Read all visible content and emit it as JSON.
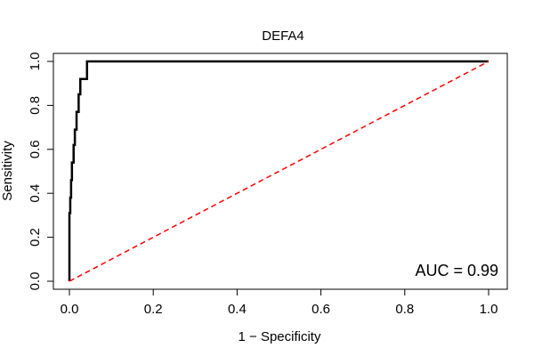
{
  "chart_data": {
    "type": "line",
    "title": "DEFA4",
    "xlabel": "1 − Specificity",
    "ylabel": "Sensitivity",
    "xlim": [
      0,
      1
    ],
    "ylim": [
      0,
      1
    ],
    "xticks": [
      0.0,
      0.2,
      0.4,
      0.6,
      0.8,
      1.0
    ],
    "yticks": [
      0.0,
      0.2,
      0.4,
      0.6,
      0.8,
      1.0
    ],
    "xtick_labels": [
      "0.0",
      "0.2",
      "0.4",
      "0.6",
      "0.8",
      "1.0"
    ],
    "ytick_labels": [
      "0.0",
      "0.2",
      "0.4",
      "0.6",
      "0.8",
      "1.0"
    ],
    "grid": false,
    "annotation": "AUC = 0.99",
    "series": [
      {
        "style": "solid",
        "color": "#000000",
        "x": [
          0.0,
          0.0,
          0.002,
          0.002,
          0.004,
          0.004,
          0.006,
          0.006,
          0.01,
          0.01,
          0.013,
          0.013,
          0.017,
          0.017,
          0.022,
          0.022,
          0.026,
          0.026,
          0.042,
          0.042,
          1.0
        ],
        "y": [
          0.0,
          0.31,
          0.31,
          0.38,
          0.38,
          0.46,
          0.46,
          0.54,
          0.54,
          0.62,
          0.62,
          0.69,
          0.69,
          0.77,
          0.77,
          0.85,
          0.85,
          0.92,
          0.92,
          1.0,
          1.0
        ]
      },
      {
        "style": "dashed",
        "color": "#ff0000",
        "x": [
          0,
          1
        ],
        "y": [
          0,
          1
        ]
      }
    ]
  }
}
